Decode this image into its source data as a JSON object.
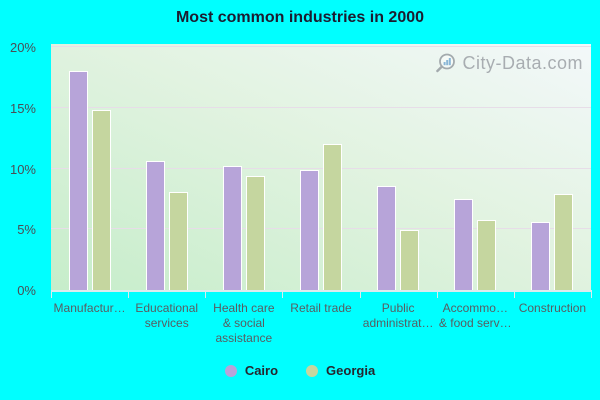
{
  "title": "Most common industries in 2000",
  "watermark": {
    "text": "City-Data.com",
    "icon": "magnifier-chart-icon"
  },
  "colors": {
    "background": "#00ffff",
    "plot_gradient_start": "#c6edca",
    "plot_gradient_mid": "#e2f3e1",
    "plot_gradient_end": "#f3f8fa",
    "gridline": "#e7dde8",
    "axis_line": "#dcebed",
    "title_text": "#1c1c30",
    "y_label_text": "#4a4e55",
    "x_label_text": "#585d61",
    "legend_text": "#26262e",
    "watermark_text": "#a5aaae",
    "watermark_icon_bars": "#85b4d6",
    "bar_border": "#ffffff"
  },
  "chart_data": {
    "type": "bar",
    "title": "Most common industries in 2000",
    "categories": [
      "Manufactur…",
      "Educational\nservices",
      "Health care\n& social\nassistance",
      "Retail trade",
      "Public\nadministrat…",
      "Accommo…\n& food serv…",
      "Construction"
    ],
    "series": [
      {
        "name": "Cairo",
        "color": "#b7a4d9",
        "values": [
          18.0,
          10.6,
          10.2,
          9.9,
          8.6,
          7.5,
          5.6
        ]
      },
      {
        "name": "Georgia",
        "color": "#c5d69f",
        "values": [
          14.8,
          8.1,
          9.4,
          12.0,
          4.9,
          5.8,
          7.9
        ]
      }
    ],
    "y_ticks": [
      {
        "value": 0,
        "label": "0%"
      },
      {
        "value": 5,
        "label": "5%"
      },
      {
        "value": 10,
        "label": "10%"
      },
      {
        "value": 15,
        "label": "15%"
      },
      {
        "value": 20,
        "label": "20%"
      }
    ],
    "ylim": [
      0,
      20.25
    ],
    "xlabel": "",
    "ylabel": "",
    "grid": true,
    "legend_position": "bottom"
  }
}
